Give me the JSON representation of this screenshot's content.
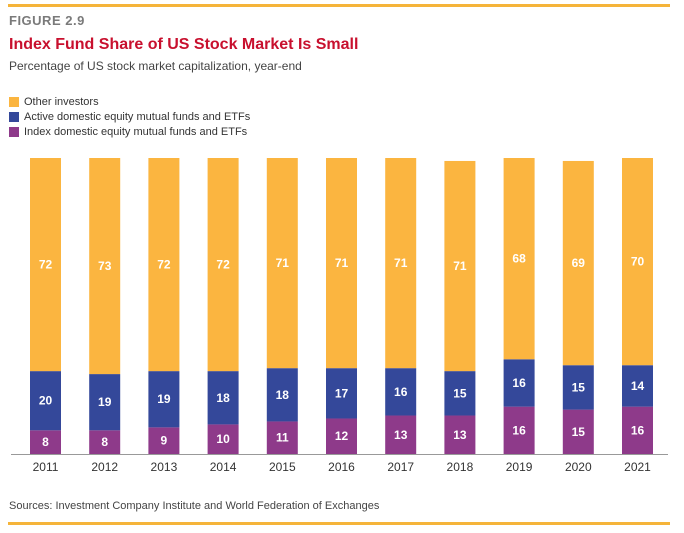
{
  "figure_label": "FIGURE 2.9",
  "title": "Index Fund Share of US Stock Market Is Small",
  "subtitle": "Percentage of US stock market capitalization, year-end",
  "source": "Sources: Investment Company Institute and World Federation of Exchanges",
  "colors": {
    "other": "#fbb540",
    "active": "#34489a",
    "index": "#8e3a8a",
    "rule": "#f5b43a",
    "title": "#c8102e"
  },
  "chart_data": {
    "type": "bar",
    "stacked": true,
    "categories": [
      "2011",
      "2012",
      "2013",
      "2014",
      "2015",
      "2016",
      "2017",
      "2018",
      "2019",
      "2020",
      "2021"
    ],
    "series": [
      {
        "name": "Index domestic equity mutual funds and ETFs",
        "color": "#8e3a8a",
        "values": [
          8,
          8,
          9,
          10,
          11,
          12,
          13,
          13,
          16,
          15,
          16
        ]
      },
      {
        "name": "Active domestic equity mutual funds and ETFs",
        "color": "#34489a",
        "values": [
          20,
          19,
          19,
          18,
          18,
          17,
          16,
          15,
          16,
          15,
          14
        ]
      },
      {
        "name": "Other investors",
        "color": "#fbb540",
        "values": [
          72,
          73,
          72,
          72,
          71,
          71,
          71,
          71,
          68,
          69,
          70
        ]
      }
    ],
    "legend_order": [
      "Other investors",
      "Active domestic equity mutual funds and ETFs",
      "Index domestic equity mutual funds and ETFs"
    ],
    "legend_position": "top-left",
    "ylim": [
      0,
      100
    ],
    "grid": false,
    "data_labels": true
  }
}
